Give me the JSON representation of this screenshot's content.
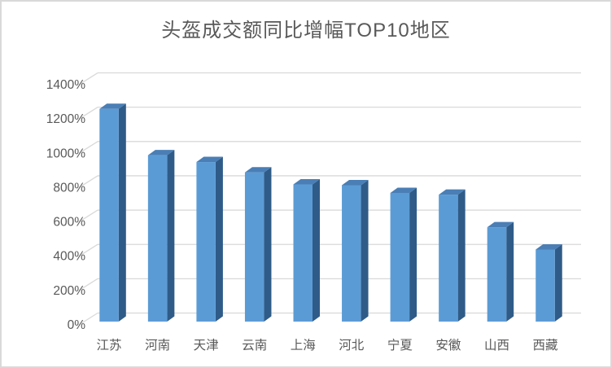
{
  "chart_data": {
    "type": "bar",
    "style": "3d-column",
    "title": "头盔成交额同比增幅TOP10地区",
    "categories": [
      "江苏",
      "河南",
      "天津",
      "云南",
      "上海",
      "河北",
      "宁夏",
      "安徽",
      "山西",
      "西藏"
    ],
    "values": [
      1240,
      970,
      930,
      870,
      800,
      795,
      750,
      740,
      550,
      420
    ],
    "value_unit": "%",
    "xlabel": "",
    "ylabel": "",
    "ylim": [
      0,
      1400
    ],
    "ytick_step": 200,
    "ytick_labels": [
      "0%",
      "200%",
      "400%",
      "600%",
      "800%",
      "1000%",
      "1200%",
      "1400%"
    ],
    "grid": true,
    "legend": "none",
    "colors": {
      "bar_front": "#5B9BD5",
      "bar_top": "#4A7EB5",
      "bar_side": "#2F5B88",
      "gridline": "#D9D9D9",
      "text": "#595959",
      "border": "#D9D9D9",
      "background": "#FFFFFF"
    }
  }
}
